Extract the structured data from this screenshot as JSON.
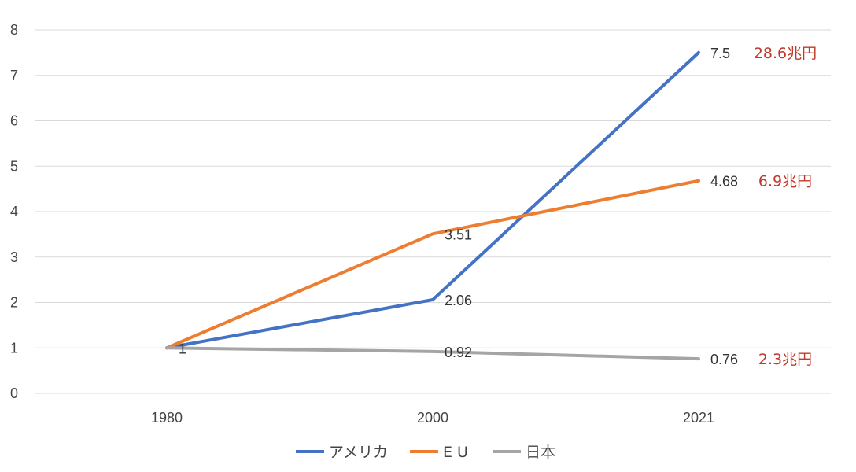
{
  "chart_data": {
    "type": "line",
    "categories": [
      "1980",
      "2000",
      "2021"
    ],
    "ylim": [
      0,
      8
    ],
    "yticks": [
      "0",
      "1",
      "2",
      "3",
      "4",
      "5",
      "6",
      "7",
      "8"
    ],
    "grid": true,
    "legend_position": "bottom",
    "series": [
      {
        "name": "アメリカ",
        "color": "#4472C4",
        "values": [
          1,
          2.06,
          7.5
        ],
        "data_labels": [
          "",
          "2.06",
          "7.5"
        ],
        "end_note": "28.6兆円"
      },
      {
        "name": "E U",
        "color": "#ED7D31",
        "values": [
          1,
          3.51,
          4.68
        ],
        "data_labels": [
          "",
          "3.51",
          "4.68"
        ],
        "end_note": "6.9兆円"
      },
      {
        "name": "日本",
        "color": "#A5A5A5",
        "values": [
          1,
          0.92,
          0.76
        ],
        "data_labels": [
          "1",
          "0.92",
          "0.76"
        ],
        "end_note": "2.3兆円"
      }
    ],
    "note_color": "#C0392B"
  }
}
